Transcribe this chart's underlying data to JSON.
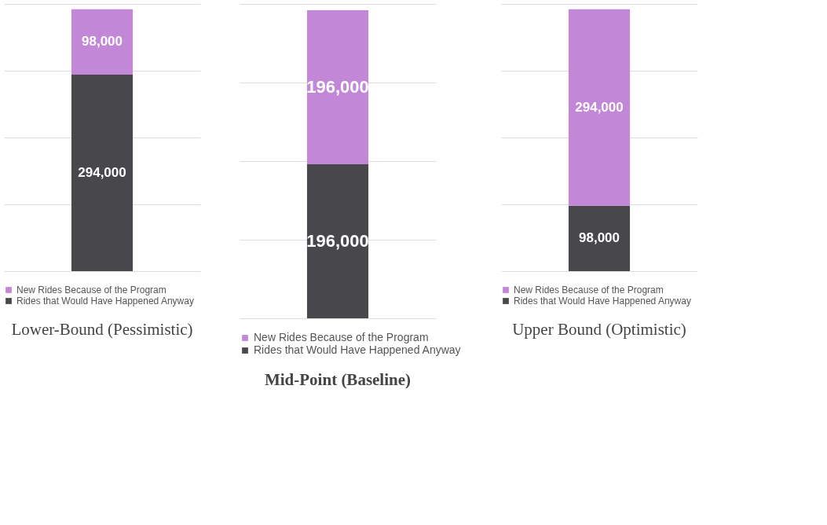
{
  "chart_data": [
    {
      "type": "bar",
      "title": "Lower-Bound (Pessimistic)",
      "categories": [
        null
      ],
      "stacked": true,
      "legend": "bottom",
      "grid": "y",
      "tick_labels": false,
      "series": [
        {
          "name": "Rides that Would Have Happened Anyway",
          "color": "#48474c",
          "values": [
            294000
          ],
          "value_labels": [
            "294,000"
          ]
        },
        {
          "name": "New Rides Because of the Program",
          "color": "#c387d8",
          "values": [
            98000
          ],
          "value_labels": [
            "98,000"
          ]
        }
      ]
    },
    {
      "type": "bar",
      "title": "Mid-Point (Baseline)",
      "categories": [
        null
      ],
      "stacked": true,
      "legend": "bottom",
      "grid": "y",
      "tick_labels": false,
      "series": [
        {
          "name": "Rides that Would Have Happened Anyway",
          "color": "#48474c",
          "values": [
            196000
          ],
          "value_labels": [
            "196,000"
          ]
        },
        {
          "name": "New Rides Because of the Program",
          "color": "#c387d8",
          "values": [
            196000
          ],
          "value_labels": [
            "196,000"
          ]
        }
      ]
    },
    {
      "type": "bar",
      "title": "Upper Bound (Optimistic)",
      "categories": [
        null
      ],
      "stacked": true,
      "legend": "bottom",
      "grid": "y",
      "tick_labels": false,
      "series": [
        {
          "name": "Rides that Would Have Happened Anyway",
          "color": "#48474c",
          "values": [
            98000
          ],
          "value_labels": [
            "98,000"
          ]
        },
        {
          "name": "New Rides Because of the Program",
          "color": "#c387d8",
          "values": [
            294000
          ],
          "value_labels": [
            "294,000"
          ]
        }
      ]
    }
  ]
}
